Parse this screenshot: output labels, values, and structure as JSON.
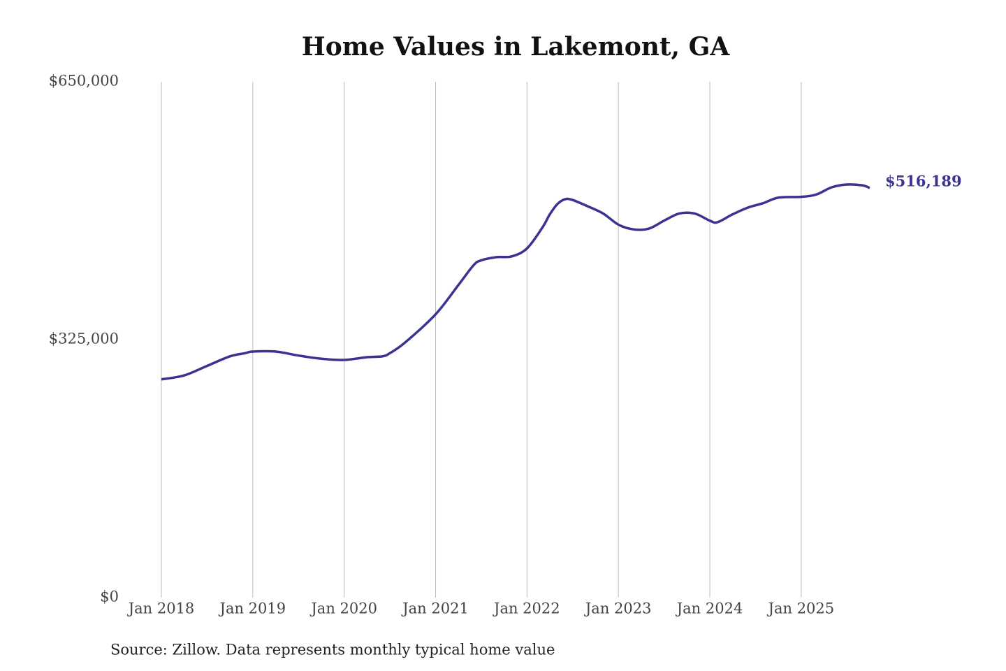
{
  "chart_data": {
    "type": "line",
    "title": "Home Values in Lakemont, GA",
    "source": "Source: Zillow. Data represents monthly typical home value",
    "x": [
      "2018-01",
      "2018-04",
      "2018-07",
      "2018-10",
      "2018-12",
      "2019-01",
      "2019-04",
      "2019-07",
      "2019-10",
      "2020-01",
      "2020-04",
      "2020-06",
      "2020-07",
      "2020-09",
      "2021-01",
      "2021-04",
      "2021-06",
      "2021-07",
      "2021-09",
      "2021-11",
      "2022-01",
      "2022-03",
      "2022-04",
      "2022-05",
      "2022-06",
      "2022-07",
      "2022-09",
      "2022-11",
      "2023-01",
      "2023-03",
      "2023-05",
      "2023-07",
      "2023-09",
      "2023-11",
      "2024-01",
      "2024-02",
      "2024-04",
      "2024-06",
      "2024-08",
      "2024-10",
      "2025-01",
      "2025-03",
      "2025-05",
      "2025-07",
      "2025-09",
      "2025-10"
    ],
    "series": [
      {
        "name": "Typical home value",
        "color": "#3a3391",
        "values": [
          275000,
          280000,
          292000,
          304000,
          308000,
          310000,
          310000,
          305000,
          301000,
          299500,
          303000,
          304000,
          308000,
          321500,
          357000,
          394000,
          419000,
          425000,
          429000,
          430000,
          440000,
          466000,
          483000,
          496000,
          502000,
          501000,
          493000,
          484000,
          470000,
          464000,
          465000,
          475000,
          484000,
          484000,
          475000,
          473000,
          483000,
          491500,
          497000,
          504000,
          505000,
          508000,
          517000,
          520500,
          519500,
          516189
        ],
        "value_labels": [
          null,
          null,
          null,
          null,
          null,
          null,
          null,
          null,
          null,
          null,
          null,
          null,
          null,
          null,
          null,
          null,
          null,
          null,
          null,
          null,
          null,
          null,
          null,
          null,
          null,
          null,
          null,
          null,
          null,
          null,
          null,
          null,
          null,
          null,
          null,
          null,
          null,
          null,
          null,
          null,
          null,
          null,
          null,
          null,
          null,
          "$516,189"
        ]
      }
    ],
    "xlim": [
      "2018-01",
      "2025-10"
    ],
    "xticks": [
      {
        "value": "2018-01",
        "label": "Jan 2018"
      },
      {
        "value": "2019-01",
        "label": "Jan 2019"
      },
      {
        "value": "2020-01",
        "label": "Jan 2020"
      },
      {
        "value": "2021-01",
        "label": "Jan 2021"
      },
      {
        "value": "2022-01",
        "label": "Jan 2022"
      },
      {
        "value": "2023-01",
        "label": "Jan 2023"
      },
      {
        "value": "2024-01",
        "label": "Jan 2024"
      },
      {
        "value": "2025-01",
        "label": "Jan 2025"
      }
    ],
    "ylim": [
      0,
      650000
    ],
    "yticks": [
      {
        "value": 0,
        "label": "$0"
      },
      {
        "value": 325000,
        "label": "$325,000"
      },
      {
        "value": 650000,
        "label": "$650,000"
      }
    ],
    "grid": "x"
  }
}
